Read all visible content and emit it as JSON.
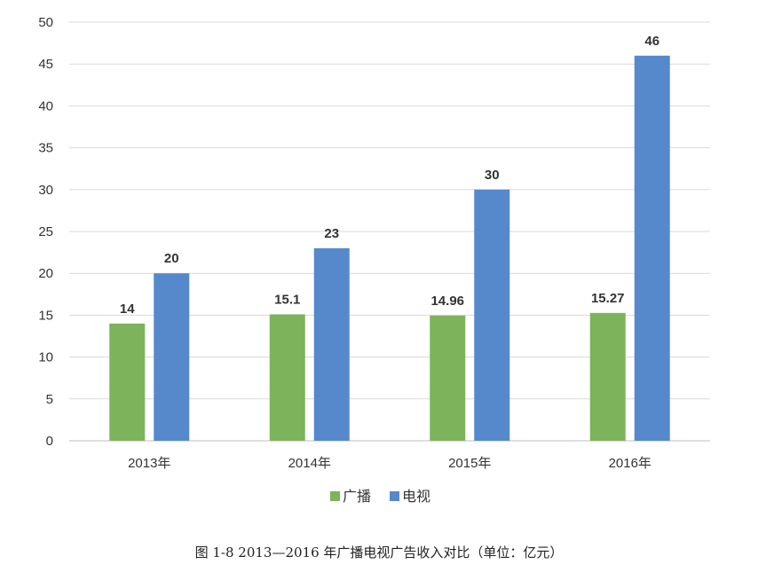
{
  "chart_data": {
    "type": "bar",
    "categories": [
      "2013年",
      "2014年",
      "2015年",
      "2016年"
    ],
    "series": [
      {
        "name": "广播",
        "values": [
          14,
          15.1,
          14.96,
          15.27
        ],
        "labels": [
          "14",
          "15.1",
          "14.96",
          "15.27"
        ],
        "color": "#7db35a"
      },
      {
        "name": "电视",
        "values": [
          20,
          23,
          30,
          46
        ],
        "labels": [
          "20",
          "23",
          "30",
          "46"
        ],
        "color": "#5689cc"
      }
    ],
    "ylim": [
      0,
      50
    ],
    "yticks": [
      "0",
      "5",
      "10",
      "15",
      "20",
      "25",
      "30",
      "35",
      "40",
      "45",
      "50"
    ],
    "grid": true,
    "legend_position": "bottom",
    "title": "",
    "xlabel": "",
    "ylabel": ""
  },
  "caption": "图 1-8 2013—2016 年广播电视广告收入对比（单位：亿元）"
}
